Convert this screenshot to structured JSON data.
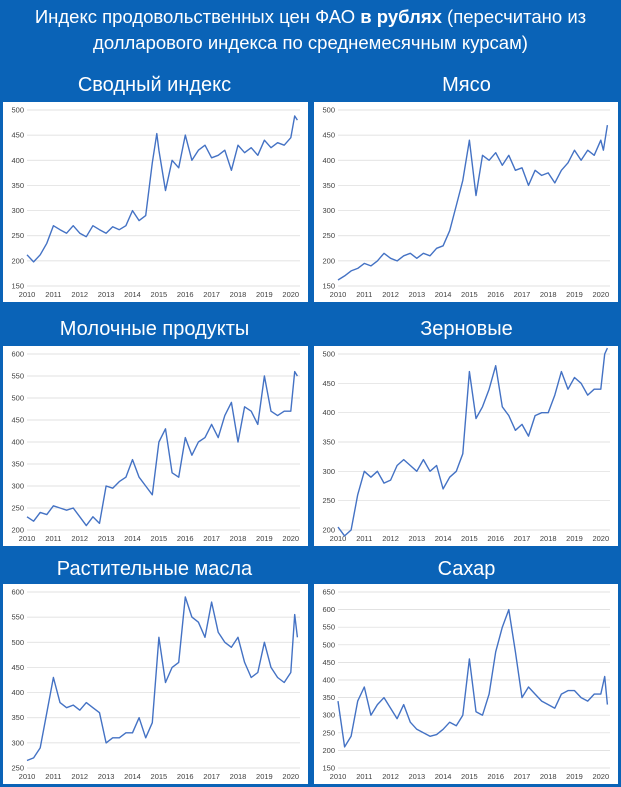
{
  "header": {
    "line1_prefix": "Индекс продовольственных цен ФАО ",
    "line1_bold": "в рублях",
    "line1_suffix": " (пересчитано из",
    "line2": "долларового индекса по среднемесячным курсам)"
  },
  "colors": {
    "background": "#0a63b7",
    "line": "#4472c4",
    "grid": "#d9d9d9"
  },
  "chart_data": [
    {
      "type": "line",
      "title": "Сводный индекс",
      "categories": [
        "2010",
        "2011",
        "2012",
        "2013",
        "2014",
        "2015",
        "2016",
        "2017",
        "2018",
        "2019",
        "2020"
      ],
      "ylim": [
        150,
        500
      ],
      "yticks": [
        150,
        200,
        250,
        300,
        350,
        400,
        450,
        500
      ],
      "x": [
        2010.0,
        2010.25,
        2010.5,
        2010.75,
        2011.0,
        2011.25,
        2011.5,
        2011.75,
        2012.0,
        2012.25,
        2012.5,
        2012.75,
        2013.0,
        2013.25,
        2013.5,
        2013.75,
        2014.0,
        2014.25,
        2014.5,
        2014.75,
        2014.92,
        2015.0,
        2015.25,
        2015.5,
        2015.75,
        2016.0,
        2016.25,
        2016.5,
        2016.75,
        2017.0,
        2017.25,
        2017.5,
        2017.75,
        2018.0,
        2018.25,
        2018.5,
        2018.75,
        2019.0,
        2019.25,
        2019.5,
        2019.75,
        2020.0,
        2020.15,
        2020.25
      ],
      "values": [
        212,
        198,
        212,
        235,
        270,
        262,
        255,
        270,
        255,
        248,
        270,
        262,
        255,
        268,
        262,
        270,
        300,
        280,
        290,
        395,
        453,
        420,
        340,
        400,
        385,
        450,
        400,
        420,
        430,
        405,
        410,
        420,
        380,
        430,
        415,
        425,
        410,
        440,
        425,
        435,
        430,
        445,
        488,
        480
      ]
    },
    {
      "type": "line",
      "title": "Мясо",
      "categories": [
        "2010",
        "2011",
        "2012",
        "2013",
        "2014",
        "2015",
        "2016",
        "2017",
        "2018",
        "2019",
        "2020"
      ],
      "ylim": [
        150,
        500
      ],
      "yticks": [
        150,
        200,
        250,
        300,
        350,
        400,
        450,
        500
      ],
      "x": [
        2010.0,
        2010.25,
        2010.5,
        2010.75,
        2011.0,
        2011.25,
        2011.5,
        2011.75,
        2012.0,
        2012.25,
        2012.5,
        2012.75,
        2013.0,
        2013.25,
        2013.5,
        2013.75,
        2014.0,
        2014.25,
        2014.5,
        2014.75,
        2015.0,
        2015.25,
        2015.5,
        2015.75,
        2016.0,
        2016.25,
        2016.5,
        2016.75,
        2017.0,
        2017.25,
        2017.5,
        2017.75,
        2018.0,
        2018.25,
        2018.5,
        2018.75,
        2019.0,
        2019.25,
        2019.5,
        2019.75,
        2020.0,
        2020.1,
        2020.25
      ],
      "values": [
        162,
        170,
        180,
        185,
        195,
        190,
        200,
        215,
        205,
        200,
        210,
        215,
        205,
        215,
        210,
        225,
        230,
        260,
        310,
        360,
        440,
        330,
        410,
        400,
        415,
        390,
        410,
        380,
        385,
        350,
        380,
        370,
        375,
        355,
        380,
        395,
        420,
        400,
        420,
        410,
        440,
        420,
        470
      ]
    },
    {
      "type": "line",
      "title": "Молочные продукты",
      "categories": [
        "2010",
        "2011",
        "2012",
        "2013",
        "2014",
        "2015",
        "2016",
        "2017",
        "2018",
        "2019",
        "2020"
      ],
      "ylim": [
        200,
        600
      ],
      "yticks": [
        200,
        250,
        300,
        350,
        400,
        450,
        500,
        550,
        600
      ],
      "x": [
        2010.0,
        2010.25,
        2010.5,
        2010.75,
        2011.0,
        2011.25,
        2011.5,
        2011.75,
        2012.0,
        2012.25,
        2012.5,
        2012.75,
        2013.0,
        2013.25,
        2013.5,
        2013.75,
        2014.0,
        2014.25,
        2014.5,
        2014.75,
        2015.0,
        2015.25,
        2015.5,
        2015.75,
        2016.0,
        2016.25,
        2016.5,
        2016.75,
        2017.0,
        2017.25,
        2017.5,
        2017.75,
        2018.0,
        2018.25,
        2018.5,
        2018.75,
        2019.0,
        2019.25,
        2019.5,
        2019.75,
        2020.0,
        2020.15,
        2020.25
      ],
      "values": [
        230,
        220,
        240,
        235,
        255,
        250,
        245,
        250,
        230,
        210,
        230,
        215,
        300,
        295,
        310,
        320,
        360,
        320,
        300,
        280,
        400,
        430,
        330,
        320,
        410,
        370,
        400,
        410,
        440,
        410,
        460,
        490,
        400,
        480,
        470,
        440,
        550,
        470,
        460,
        470,
        470,
        560,
        550
      ]
    },
    {
      "type": "line",
      "title": "Зерновые",
      "categories": [
        "2010",
        "2011",
        "2012",
        "2013",
        "2014",
        "2015",
        "2016",
        "2017",
        "2018",
        "2019",
        "2020"
      ],
      "ylim": [
        200,
        500
      ],
      "yticks": [
        200,
        250,
        300,
        350,
        400,
        450,
        500
      ],
      "x": [
        2010.0,
        2010.25,
        2010.5,
        2010.75,
        2011.0,
        2011.25,
        2011.5,
        2011.75,
        2012.0,
        2012.25,
        2012.5,
        2012.75,
        2013.0,
        2013.25,
        2013.5,
        2013.75,
        2014.0,
        2014.25,
        2014.5,
        2014.75,
        2015.0,
        2015.25,
        2015.5,
        2015.75,
        2016.0,
        2016.25,
        2016.5,
        2016.75,
        2017.0,
        2017.25,
        2017.5,
        2017.75,
        2018.0,
        2018.25,
        2018.5,
        2018.75,
        2019.0,
        2019.25,
        2019.5,
        2019.75,
        2020.0,
        2020.15,
        2020.25
      ],
      "values": [
        205,
        190,
        200,
        260,
        300,
        290,
        300,
        280,
        285,
        310,
        320,
        310,
        300,
        320,
        300,
        310,
        270,
        290,
        300,
        330,
        470,
        390,
        410,
        440,
        480,
        410,
        395,
        370,
        380,
        360,
        395,
        400,
        400,
        430,
        470,
        440,
        460,
        450,
        430,
        440,
        440,
        500,
        510
      ]
    },
    {
      "type": "line",
      "title": "Растительные масла",
      "categories": [
        "2010",
        "2011",
        "2012",
        "2013",
        "2014",
        "2015",
        "2016",
        "2017",
        "2018",
        "2019",
        "2020"
      ],
      "ylim": [
        250,
        600
      ],
      "yticks": [
        250,
        300,
        350,
        400,
        450,
        500,
        550,
        600
      ],
      "x": [
        2010.0,
        2010.25,
        2010.5,
        2010.75,
        2011.0,
        2011.25,
        2011.5,
        2011.75,
        2012.0,
        2012.25,
        2012.5,
        2012.75,
        2013.0,
        2013.25,
        2013.5,
        2013.75,
        2014.0,
        2014.25,
        2014.5,
        2014.75,
        2015.0,
        2015.25,
        2015.5,
        2015.75,
        2016.0,
        2016.25,
        2016.5,
        2016.75,
        2017.0,
        2017.25,
        2017.5,
        2017.75,
        2018.0,
        2018.25,
        2018.5,
        2018.75,
        2019.0,
        2019.25,
        2019.5,
        2019.75,
        2020.0,
        2020.15,
        2020.25
      ],
      "values": [
        265,
        270,
        290,
        360,
        430,
        380,
        370,
        375,
        365,
        380,
        370,
        360,
        300,
        310,
        310,
        320,
        320,
        350,
        310,
        340,
        510,
        420,
        450,
        460,
        590,
        550,
        540,
        510,
        580,
        520,
        500,
        490,
        510,
        460,
        430,
        440,
        500,
        450,
        430,
        420,
        440,
        555,
        510
      ]
    },
    {
      "type": "line",
      "title": "Сахар",
      "categories": [
        "2010",
        "2011",
        "2012",
        "2013",
        "2014",
        "2015",
        "2016",
        "2017",
        "2018",
        "2019",
        "2020"
      ],
      "ylim": [
        150,
        650
      ],
      "yticks": [
        150,
        200,
        250,
        300,
        350,
        400,
        450,
        500,
        550,
        600,
        650
      ],
      "x": [
        2010.0,
        2010.25,
        2010.5,
        2010.75,
        2011.0,
        2011.25,
        2011.5,
        2011.75,
        2012.0,
        2012.25,
        2012.5,
        2012.75,
        2013.0,
        2013.25,
        2013.5,
        2013.75,
        2014.0,
        2014.25,
        2014.5,
        2014.75,
        2015.0,
        2015.25,
        2015.5,
        2015.75,
        2016.0,
        2016.25,
        2016.5,
        2016.75,
        2017.0,
        2017.25,
        2017.5,
        2017.75,
        2018.0,
        2018.25,
        2018.5,
        2018.75,
        2019.0,
        2019.25,
        2019.5,
        2019.75,
        2020.0,
        2020.15,
        2020.25
      ],
      "values": [
        340,
        210,
        240,
        340,
        380,
        300,
        330,
        350,
        320,
        290,
        330,
        280,
        260,
        250,
        240,
        245,
        260,
        280,
        270,
        300,
        460,
        310,
        300,
        360,
        480,
        550,
        600,
        480,
        350,
        380,
        360,
        340,
        330,
        320,
        360,
        370,
        370,
        350,
        340,
        360,
        360,
        410,
        330
      ]
    }
  ]
}
